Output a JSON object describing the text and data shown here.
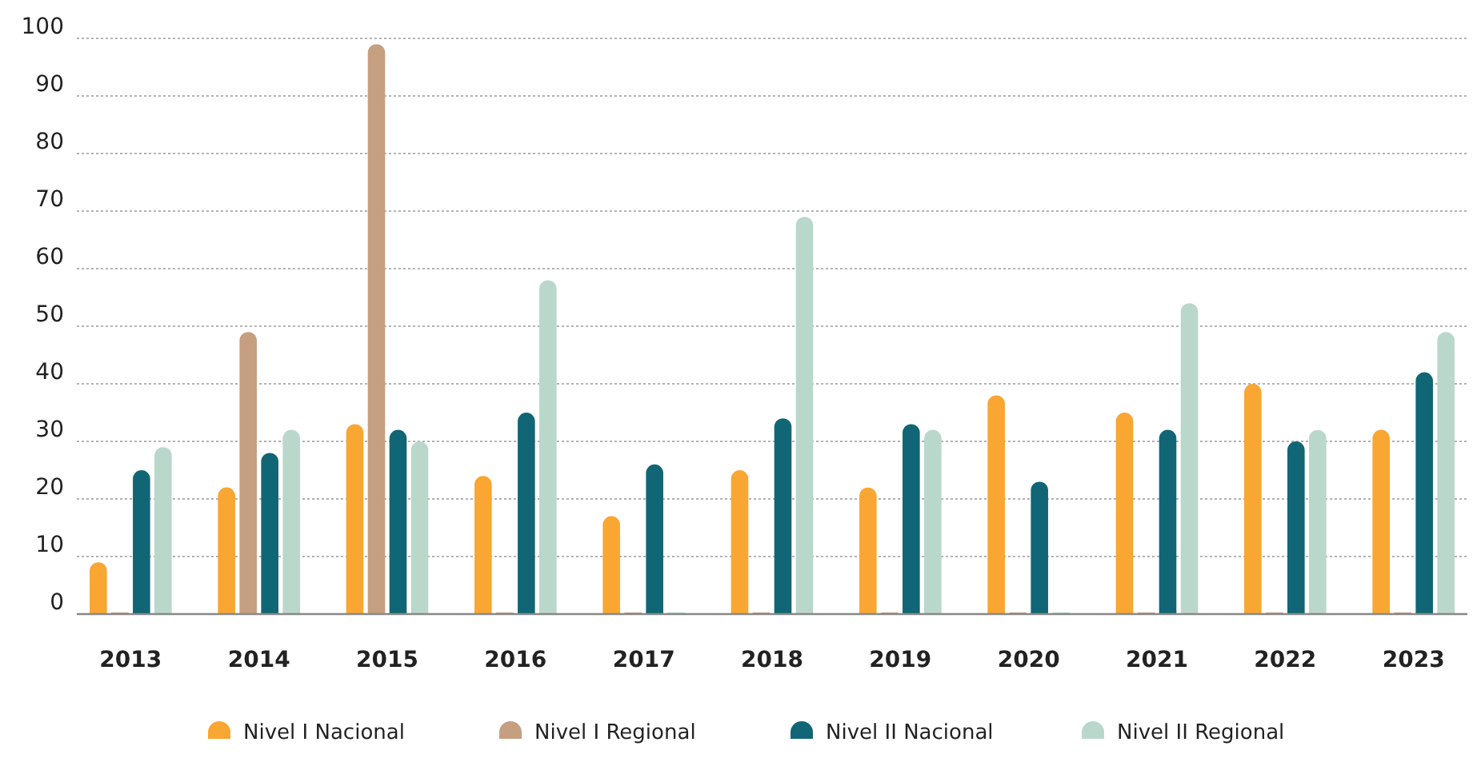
{
  "chart_data": {
    "type": "bar",
    "categories": [
      "2013",
      "2014",
      "2015",
      "2016",
      "2017",
      "2018",
      "2019",
      "2020",
      "2021",
      "2022",
      "2023"
    ],
    "series": [
      {
        "name": "Nivel I Nacional",
        "color": "#f9a633",
        "values": [
          9,
          22,
          33,
          24,
          17,
          25,
          22,
          38,
          35,
          40,
          32
        ]
      },
      {
        "name": "Nivel I Regional",
        "color": "#c59f80",
        "values": [
          0,
          49,
          99,
          0,
          0,
          0,
          0,
          0,
          0,
          0,
          0
        ]
      },
      {
        "name": "Nivel II Nacional",
        "color": "#116675",
        "values": [
          25,
          28,
          32,
          35,
          26,
          34,
          33,
          23,
          32,
          30,
          42
        ]
      },
      {
        "name": "Nivel II Regional",
        "color": "#bad7cc",
        "values": [
          29,
          32,
          30,
          58,
          0,
          69,
          32,
          0,
          54,
          32,
          49
        ]
      }
    ],
    "ylim": [
      0,
      100
    ],
    "yticks": [
      0,
      10,
      20,
      30,
      40,
      50,
      60,
      70,
      80,
      90,
      100
    ],
    "grid": "y",
    "legend": "bottom"
  }
}
